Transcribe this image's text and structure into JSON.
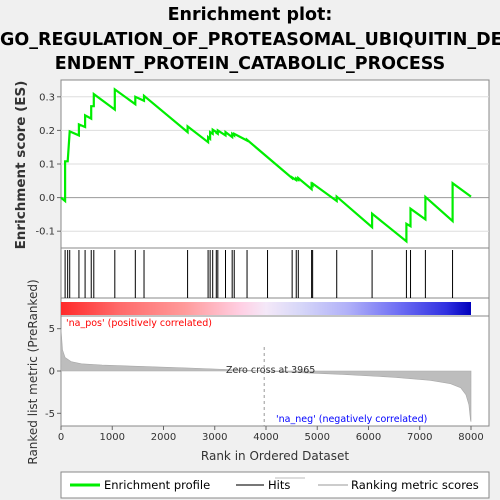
{
  "title_lines": [
    "Enrichment plot:",
    "GO_REGULATION_OF_PROTEASOMAL_UBIQUITIN_DEP",
    "ENDENT_PROTEIN_CATABOLIC_PROCESS"
  ],
  "colors": {
    "es_line": "#00ee00",
    "hit": "#000000",
    "pos_text": "#ff0000",
    "neg_text": "#0000ff",
    "metric_fill": "#bdbdbd"
  },
  "chart_data": {
    "type": "line",
    "ylabel_top": "Enrichment score (ES)",
    "ylabel_bottom": "Ranked list metric (PreRanked)",
    "xlabel": "Rank in Ordered Dataset",
    "xlim": [
      0,
      8000
    ],
    "xticks": [
      0,
      1000,
      2000,
      3000,
      4000,
      5000,
      6000,
      7000,
      8000
    ],
    "es_ylim": [
      -0.15,
      0.35
    ],
    "es_yticks": [
      -0.1,
      0.0,
      0.1,
      0.2,
      0.3
    ],
    "es_ytick_labels": [
      "-0.1",
      "0.0",
      "0.1",
      "0.2",
      "0.3"
    ],
    "metric_ylim": [
      -6.5,
      6.5
    ],
    "metric_yticks": [
      -5,
      0,
      5
    ],
    "metric_ytick_labels": [
      "-5",
      "0",
      "5"
    ],
    "hits": [
      80,
      130,
      170,
      350,
      470,
      590,
      640,
      1050,
      1450,
      1620,
      2470,
      2870,
      2910,
      2960,
      3030,
      3060,
      3210,
      3340,
      3380,
      3630,
      4030,
      4510,
      4590,
      4630,
      4890,
      4910,
      5380,
      6070,
      6740,
      6820,
      7110,
      7640
    ],
    "es_points": [
      [
        0,
        0.0
      ],
      [
        80,
        -0.01
      ],
      [
        80,
        0.108
      ],
      [
        130,
        0.108
      ],
      [
        170,
        0.197
      ],
      [
        350,
        0.185
      ],
      [
        350,
        0.218
      ],
      [
        470,
        0.21
      ],
      [
        470,
        0.245
      ],
      [
        590,
        0.235
      ],
      [
        590,
        0.272
      ],
      [
        640,
        0.272
      ],
      [
        640,
        0.308
      ],
      [
        1050,
        0.262
      ],
      [
        1050,
        0.322
      ],
      [
        1450,
        0.278
      ],
      [
        1450,
        0.3
      ],
      [
        1620,
        0.288
      ],
      [
        1620,
        0.303
      ],
      [
        2470,
        0.195
      ],
      [
        2470,
        0.212
      ],
      [
        2870,
        0.165
      ],
      [
        2870,
        0.18
      ],
      [
        2910,
        0.175
      ],
      [
        2910,
        0.195
      ],
      [
        2960,
        0.19
      ],
      [
        2960,
        0.202
      ],
      [
        3030,
        0.195
      ],
      [
        3030,
        0.193
      ],
      [
        3060,
        0.19
      ],
      [
        3060,
        0.2
      ],
      [
        3210,
        0.185
      ],
      [
        3210,
        0.195
      ],
      [
        3340,
        0.18
      ],
      [
        3340,
        0.19
      ],
      [
        3380,
        0.185
      ],
      [
        3380,
        0.19
      ],
      [
        3630,
        0.17
      ],
      [
        3630,
        0.172
      ],
      [
        4510,
        0.058
      ],
      [
        4510,
        0.06
      ],
      [
        4590,
        0.052
      ],
      [
        4590,
        0.057
      ],
      [
        4630,
        0.053
      ],
      [
        4630,
        0.058
      ],
      [
        4890,
        0.025
      ],
      [
        4890,
        0.04
      ],
      [
        4910,
        0.037
      ],
      [
        4910,
        0.042
      ],
      [
        5380,
        -0.01
      ],
      [
        5380,
        0.003
      ],
      [
        6070,
        -0.088
      ],
      [
        6070,
        -0.048
      ],
      [
        6740,
        -0.13
      ],
      [
        6740,
        -0.078
      ],
      [
        6820,
        -0.085
      ],
      [
        6820,
        -0.033
      ],
      [
        7110,
        -0.065
      ],
      [
        7110,
        0.002
      ],
      [
        7640,
        -0.07
      ],
      [
        7640,
        0.043
      ],
      [
        8000,
        0.003
      ]
    ],
    "metric_curve": [
      [
        0,
        5.0
      ],
      [
        30,
        2.5
      ],
      [
        80,
        1.6
      ],
      [
        200,
        1.1
      ],
      [
        400,
        0.85
      ],
      [
        800,
        0.7
      ],
      [
        1500,
        0.55
      ],
      [
        2500,
        0.35
      ],
      [
        3500,
        0.12
      ],
      [
        3965,
        0.0
      ],
      [
        4500,
        -0.15
      ],
      [
        5500,
        -0.4
      ],
      [
        6500,
        -0.75
      ],
      [
        7200,
        -1.1
      ],
      [
        7600,
        -1.5
      ],
      [
        7800,
        -2.0
      ],
      [
        7900,
        -2.8
      ],
      [
        7960,
        -4.0
      ],
      [
        7990,
        -5.8
      ],
      [
        8000,
        -6.0
      ]
    ],
    "zero_cross": 3965,
    "zero_cross_label": "Zero cross at 3965",
    "pos_label": "'na_pos' (positively correlated)",
    "neg_label": "'na_neg' (negatively correlated)",
    "legend": [
      "Enrichment profile",
      "Hits",
      "Ranking metric scores"
    ],
    "legend_position": "bottom"
  }
}
